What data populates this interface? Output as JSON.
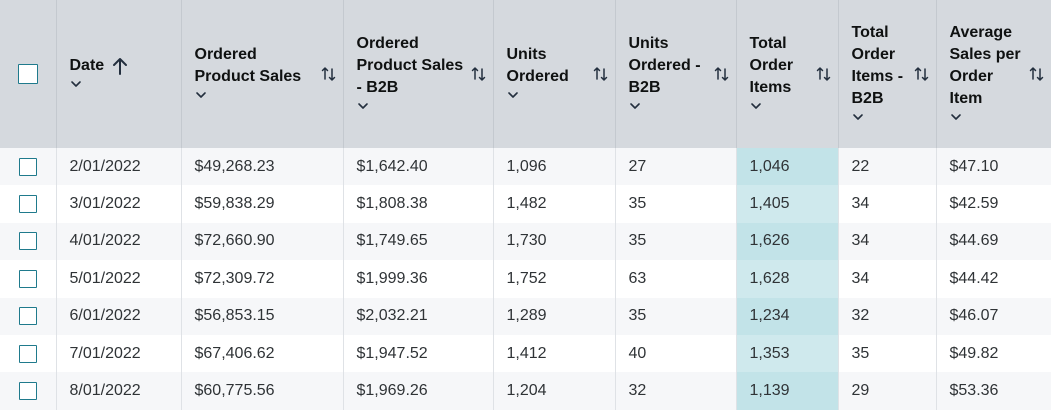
{
  "columns": [
    {
      "label": "Date"
    },
    {
      "label": "Ordered\nProduct Sales"
    },
    {
      "label": "Ordered\nProduct Sales\n- B2B"
    },
    {
      "label": "Units\nOrdered"
    },
    {
      "label": "Units\nOrdered -\nB2B"
    },
    {
      "label": "Total\nOrder\nItems"
    },
    {
      "label": "Total\nOrder\nItems -\nB2B"
    },
    {
      "label": "Average\nSales per\nOrder Item"
    }
  ],
  "rows": [
    [
      "2/01/2022",
      "$49,268.23",
      "$1,642.40",
      "1,096",
      "27",
      "1,046",
      "22",
      "$47.10"
    ],
    [
      "3/01/2022",
      "$59,838.29",
      "$1,808.38",
      "1,482",
      "35",
      "1,405",
      "34",
      "$42.59"
    ],
    [
      "4/01/2022",
      "$72,660.90",
      "$1,749.65",
      "1,730",
      "35",
      "1,626",
      "34",
      "$44.69"
    ],
    [
      "5/01/2022",
      "$72,309.72",
      "$1,999.36",
      "1,752",
      "63",
      "1,628",
      "34",
      "$44.42"
    ],
    [
      "6/01/2022",
      "$56,853.15",
      "$2,032.21",
      "1,289",
      "35",
      "1,234",
      "32",
      "$46.07"
    ],
    [
      "7/01/2022",
      "$67,406.62",
      "$1,947.52",
      "1,412",
      "40",
      "1,353",
      "35",
      "$49.82"
    ],
    [
      "8/01/2022",
      "$60,775.56",
      "$1,969.26",
      "1,204",
      "32",
      "1,139",
      "29",
      "$53.36"
    ]
  ],
  "highlight_column_color": "#c2e3e8",
  "header_background": "#d5d9de",
  "icons": {
    "sort_ascending": "arrow-up-icon",
    "sort_toggle": "sort-up-down-icon",
    "dropdown": "chevron-down-icon"
  }
}
